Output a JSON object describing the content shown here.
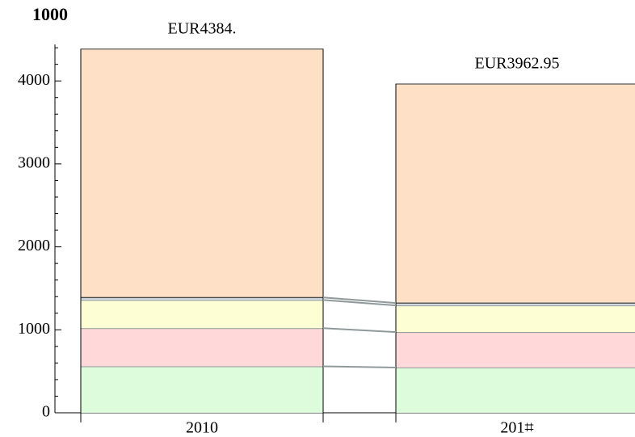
{
  "chart_data": {
    "type": "stacked_bar",
    "ylabel": "1000",
    "categories": [
      "2010",
      "201⌗"
    ],
    "annotations": [
      "EUR4384.",
      "EUR3962.95"
    ],
    "series": [
      {
        "color": "#dcfcdc",
        "values": [
          560,
          545
        ]
      },
      {
        "color": "#ffd9d9",
        "values": [
          460,
          428
        ]
      },
      {
        "color": "#fefed5",
        "values": [
          340,
          321
        ]
      },
      {
        "color": "#d6dde6",
        "values": [
          30,
          29
        ]
      },
      {
        "color": "#fde0c5",
        "values": [
          2994,
          2639.95
        ]
      }
    ],
    "ylim": [
      0,
      4440
    ],
    "yticks": [
      0,
      1000,
      2000,
      3000,
      4000
    ],
    "yminor": [
      200,
      400,
      600,
      800,
      1200,
      1400,
      1600,
      1800,
      2200,
      2400,
      2600,
      2800,
      3200,
      3400,
      3600,
      3800,
      4200,
      4400
    ]
  }
}
